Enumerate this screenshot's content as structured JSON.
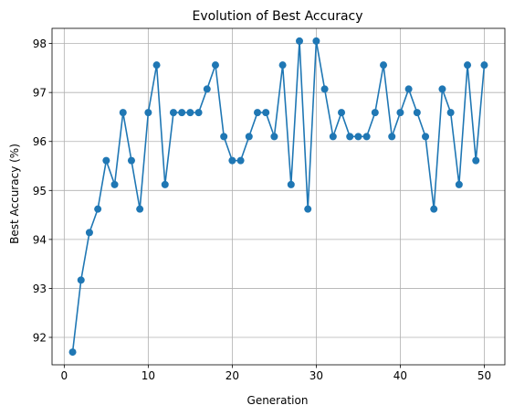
{
  "chart_data": {
    "type": "line",
    "title": "Evolution of Best Accuracy",
    "xlabel": "Generation",
    "ylabel": "Best Accuracy (%)",
    "xlim": [
      -1.45,
      52.45
    ],
    "ylim": [
      91.44,
      98.31
    ],
    "xticks": [
      0,
      10,
      20,
      30,
      40,
      50
    ],
    "yticks": [
      92,
      93,
      94,
      95,
      96,
      97,
      98
    ],
    "grid": true,
    "line_color": "#1f77b4",
    "marker": "circle",
    "series": [
      {
        "x": [
          1,
          2,
          3,
          4,
          5,
          6,
          7,
          8,
          9,
          10,
          11,
          12,
          13,
          14,
          15,
          16,
          17,
          18,
          19,
          20,
          21,
          22,
          23,
          24,
          25,
          26,
          27,
          28,
          29,
          30,
          31,
          32,
          33,
          34,
          35,
          36,
          37,
          38,
          39,
          40,
          41,
          42,
          43,
          44,
          45,
          46,
          47,
          48,
          49,
          50
        ],
        "values": [
          91.7,
          93.17,
          94.14,
          94.62,
          95.61,
          95.12,
          96.59,
          95.61,
          94.62,
          96.59,
          97.56,
          95.12,
          96.59,
          96.59,
          96.59,
          96.59,
          97.07,
          97.56,
          96.1,
          95.61,
          95.61,
          96.1,
          96.59,
          96.59,
          96.1,
          97.56,
          95.12,
          98.05,
          94.62,
          98.05,
          97.07,
          96.1,
          96.59,
          96.1,
          96.1,
          96.1,
          96.59,
          97.56,
          96.1,
          96.59,
          97.07,
          96.59,
          96.1,
          94.62,
          97.07,
          96.59,
          95.12,
          97.56,
          95.61,
          97.56
        ]
      }
    ]
  }
}
